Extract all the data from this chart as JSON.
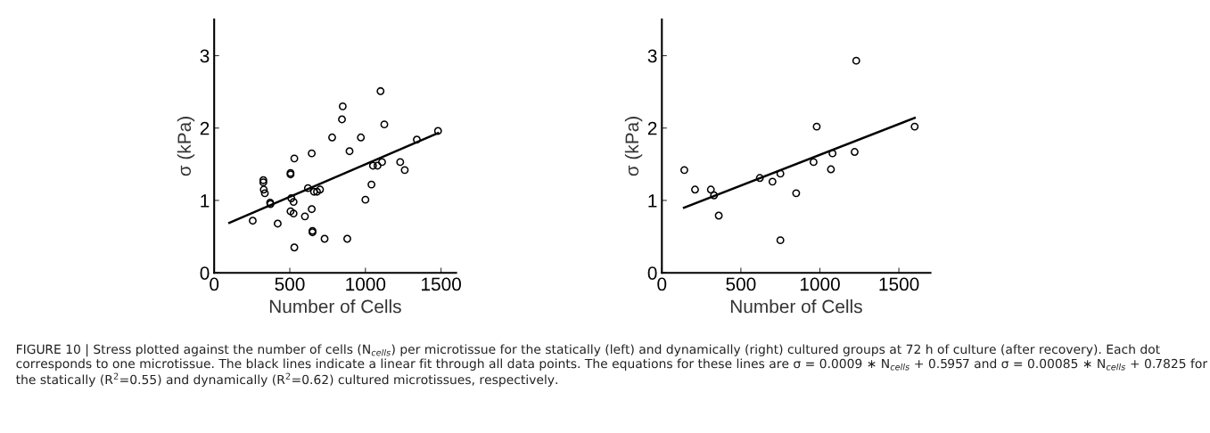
{
  "chart_data": [
    {
      "type": "scatter",
      "xlabel": "Number of Cells",
      "ylabel": "σ (kPa)",
      "xlim": [
        0,
        1600
      ],
      "ylim": [
        0,
        3.5
      ],
      "xticks": [
        0,
        500,
        1000,
        1500
      ],
      "yticks": [
        0,
        1,
        2,
        3
      ],
      "grid": false,
      "legend": false,
      "marker": "circle",
      "series": [
        {
          "color": "#000000",
          "x": [
            255,
            325,
            325,
            328,
            335,
            370,
            372,
            420,
            505,
            505,
            510,
            505,
            525,
            525,
            530,
            530,
            600,
            620,
            645,
            645,
            650,
            650,
            660,
            680,
            700,
            730,
            780,
            845,
            850,
            880,
            895,
            970,
            1000,
            1040,
            1050,
            1080,
            1100,
            1110,
            1125,
            1230,
            1260,
            1340,
            1480
          ],
          "values": [
            0.72,
            1.28,
            1.25,
            1.15,
            1.1,
            0.97,
            0.95,
            0.68,
            1.38,
            1.36,
            1.03,
            0.85,
            0.98,
            0.82,
            1.58,
            0.35,
            0.78,
            1.17,
            1.65,
            0.88,
            0.58,
            0.56,
            1.12,
            1.12,
            1.15,
            0.47,
            1.87,
            2.12,
            2.3,
            0.47,
            1.68,
            1.87,
            1.01,
            1.22,
            1.48,
            1.48,
            2.51,
            1.53,
            2.05,
            1.53,
            1.42,
            1.84,
            1.96
          ]
        },
        {
          "type": "line",
          "color": "#000000",
          "line_style": "solid",
          "marker": "none",
          "x": [
            100,
            1480
          ],
          "values": [
            0.69,
            1.93
          ]
        }
      ],
      "annotations": [
        "FIGURE 10 | Stress plotted against the number of cells (N$_{cells}$) per microtissue for the statically (left) and dynamically (right) cultured groups at 72 h of culture (after recovery). Each dot corresponds to one microtissue. The black lines indicate a linear fit through all data points. The equations for these lines are σ = 0.0009 ∗ N$_{cells}$ + 0.5957 and σ = 0.00085 ∗ N$_{cells}$ + 0.7825 for the statically (R$^{2}$=0.55) and dynamically (R$^{2}$=0.62) cultured microtissues, respectively."
      ]
    },
    {
      "type": "scatter",
      "xlabel": "Number of Cells",
      "ylabel": "σ (kPa)",
      "xlim": [
        0,
        1700
      ],
      "ylim": [
        0,
        3.5
      ],
      "xticks": [
        0,
        500,
        1000,
        1500
      ],
      "yticks": [
        0,
        1,
        2,
        3
      ],
      "grid": false,
      "legend": false,
      "marker": "circle",
      "series": [
        {
          "color": "#000000",
          "x": [
            142,
            210,
            310,
            330,
            360,
            620,
            700,
            750,
            750,
            850,
            960,
            980,
            1070,
            1080,
            1220,
            1230,
            1600
          ],
          "values": [
            1.42,
            1.15,
            1.15,
            1.07,
            0.79,
            1.31,
            1.26,
            1.37,
            0.45,
            1.1,
            1.53,
            2.02,
            1.43,
            1.65,
            1.67,
            2.93,
            2.02
          ]
        },
        {
          "type": "line",
          "color": "#000000",
          "line_style": "solid",
          "marker": "none",
          "x": [
            140,
            1600
          ],
          "values": [
            0.9,
            2.14
          ]
        }
      ]
    }
  ]
}
